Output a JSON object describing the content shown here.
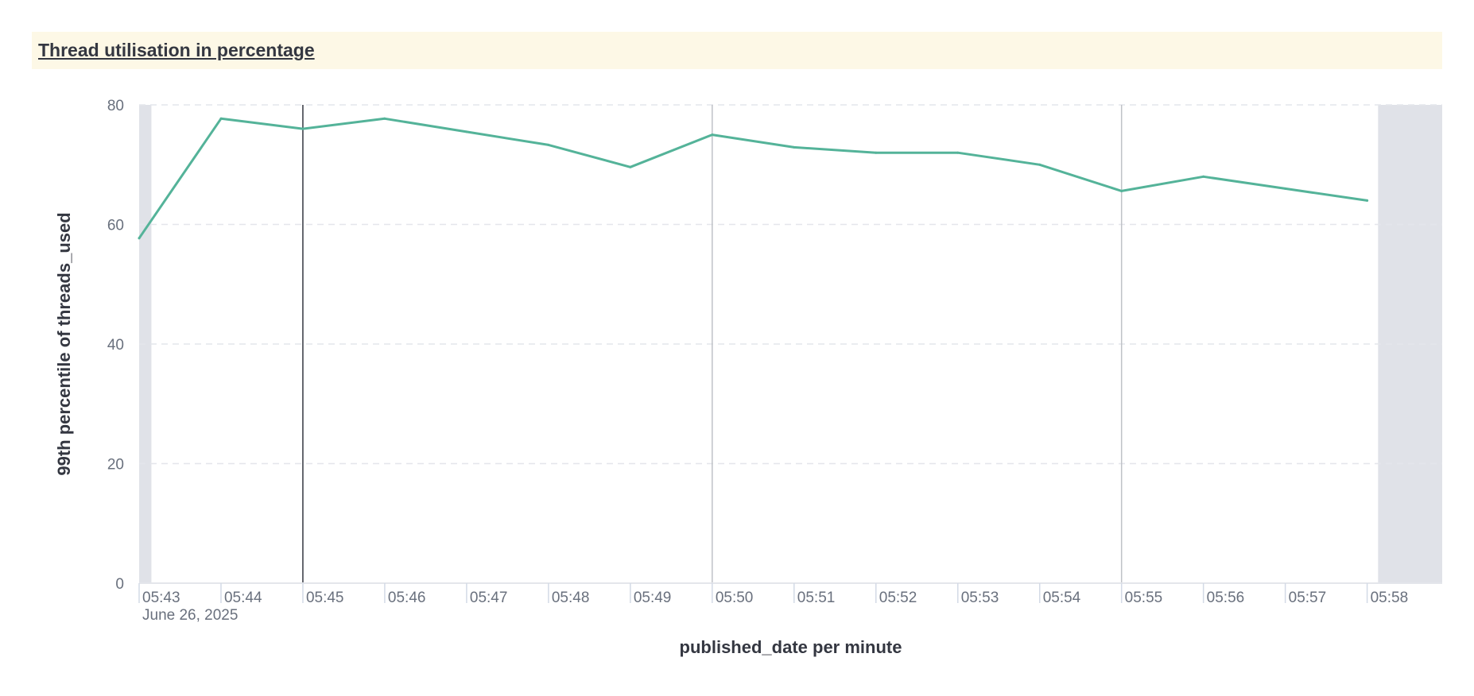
{
  "panel": {
    "title": "Thread utilisation in percentage"
  },
  "chart_data": {
    "type": "line",
    "title": "Thread utilisation in percentage",
    "xlabel": "published_date per minute",
    "ylabel": "99th percentile of threads_used",
    "ylim": [
      0,
      80
    ],
    "yticks": [
      0,
      20,
      40,
      60,
      80
    ],
    "xlim": [
      "05:43",
      "05:58:55"
    ],
    "xticks": [
      "05:43",
      "05:44",
      "05:45",
      "05:46",
      "05:47",
      "05:48",
      "05:49",
      "05:50",
      "05:51",
      "05:52",
      "05:53",
      "05:54",
      "05:55",
      "05:56",
      "05:57",
      "05:58"
    ],
    "date_label": "June 26, 2025",
    "grid": "horizontal-dashed",
    "line_color": "#54b399",
    "shaded_color": "#e0e2e8",
    "shaded_ranges": [
      [
        "05:43",
        "05:43:09"
      ],
      [
        "05:58:08",
        "05:58:55"
      ]
    ],
    "marker_lines": [
      "05:45",
      "05:50",
      "05:55"
    ],
    "series": [
      {
        "x": [
          "05:43",
          "05:44",
          "05:45",
          "05:46",
          "05:47",
          "05:48",
          "05:49",
          "05:50",
          "05:51",
          "05:52",
          "05:53",
          "05:54",
          "05:55",
          "05:56",
          "05:57",
          "05:58"
        ],
        "values": [
          57.7,
          77.7,
          76.0,
          77.7,
          75.5,
          73.3,
          69.6,
          75.0,
          72.9,
          72.0,
          72.0,
          70.0,
          65.6,
          68.0,
          66.0,
          64.0
        ]
      }
    ]
  }
}
